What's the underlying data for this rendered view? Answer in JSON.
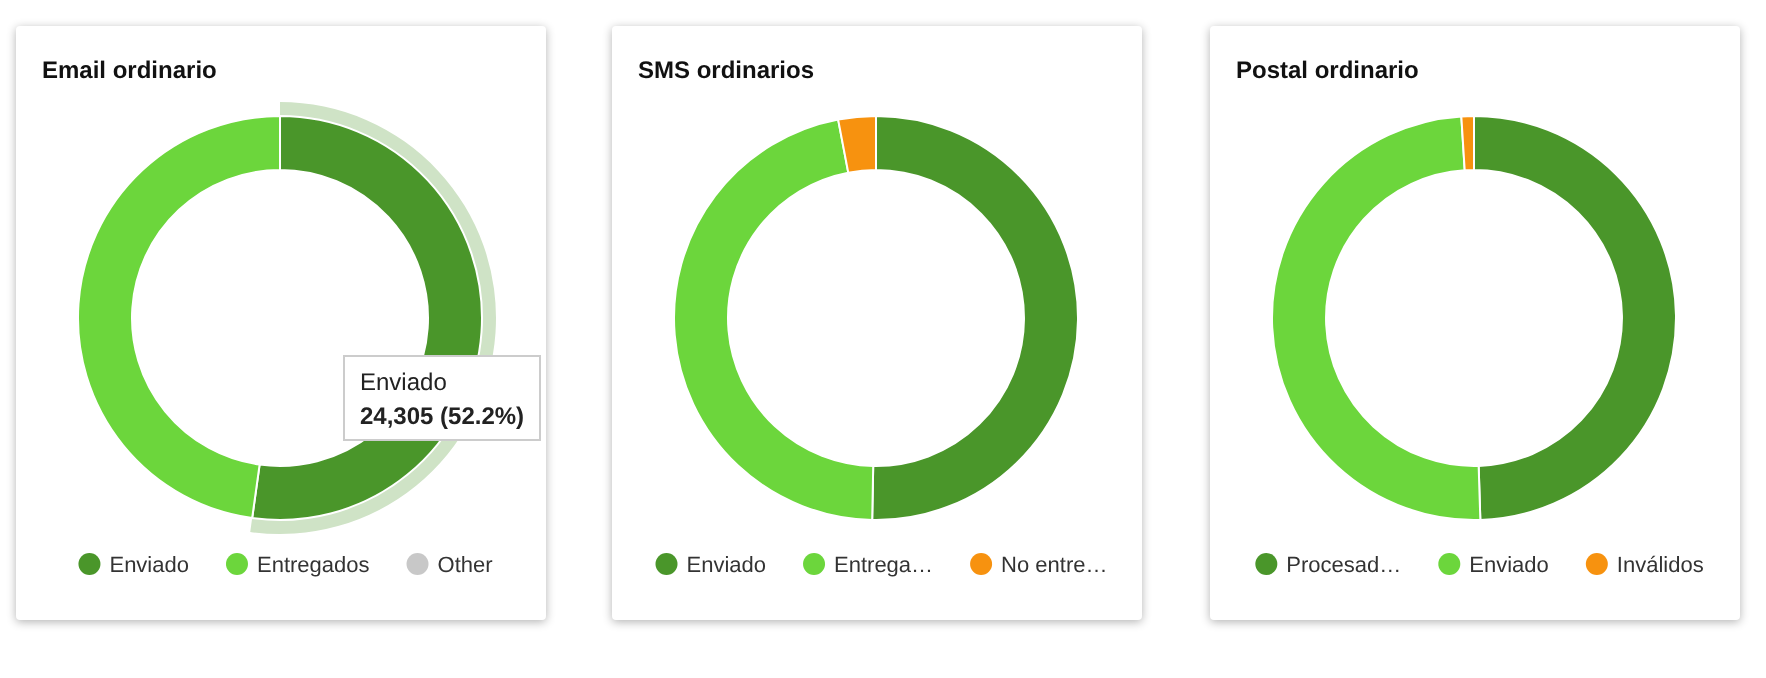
{
  "chart_data": [
    {
      "type": "donut",
      "title": "Email ordinario",
      "categories": [
        "Enviado",
        "Entregados",
        "Other"
      ],
      "values": [
        52.2,
        47.8,
        0
      ],
      "colors": [
        "#4a962a",
        "#6cd63c",
        "#c8c8c8"
      ],
      "legend": "bottom",
      "annotations": [
        "Enviado",
        "24,305 (52.2%)"
      ]
    },
    {
      "type": "donut",
      "title": "SMS ordinarios",
      "categories": [
        "Enviado",
        "Entrega…",
        "No entre…"
      ],
      "values": [
        50.3,
        46.7,
        3.0
      ],
      "colors": [
        "#4a962a",
        "#6cd63c",
        "#f7920f"
      ],
      "legend": "bottom"
    },
    {
      "type": "donut",
      "title": "Postal ordinario",
      "categories": [
        "Procesad…",
        "Enviado",
        "Inválidos"
      ],
      "values": [
        49.5,
        49.5,
        1.0
      ],
      "colors": [
        "#4a962a",
        "#6cd63c",
        "#f7920f"
      ],
      "legend": "bottom"
    }
  ]
}
